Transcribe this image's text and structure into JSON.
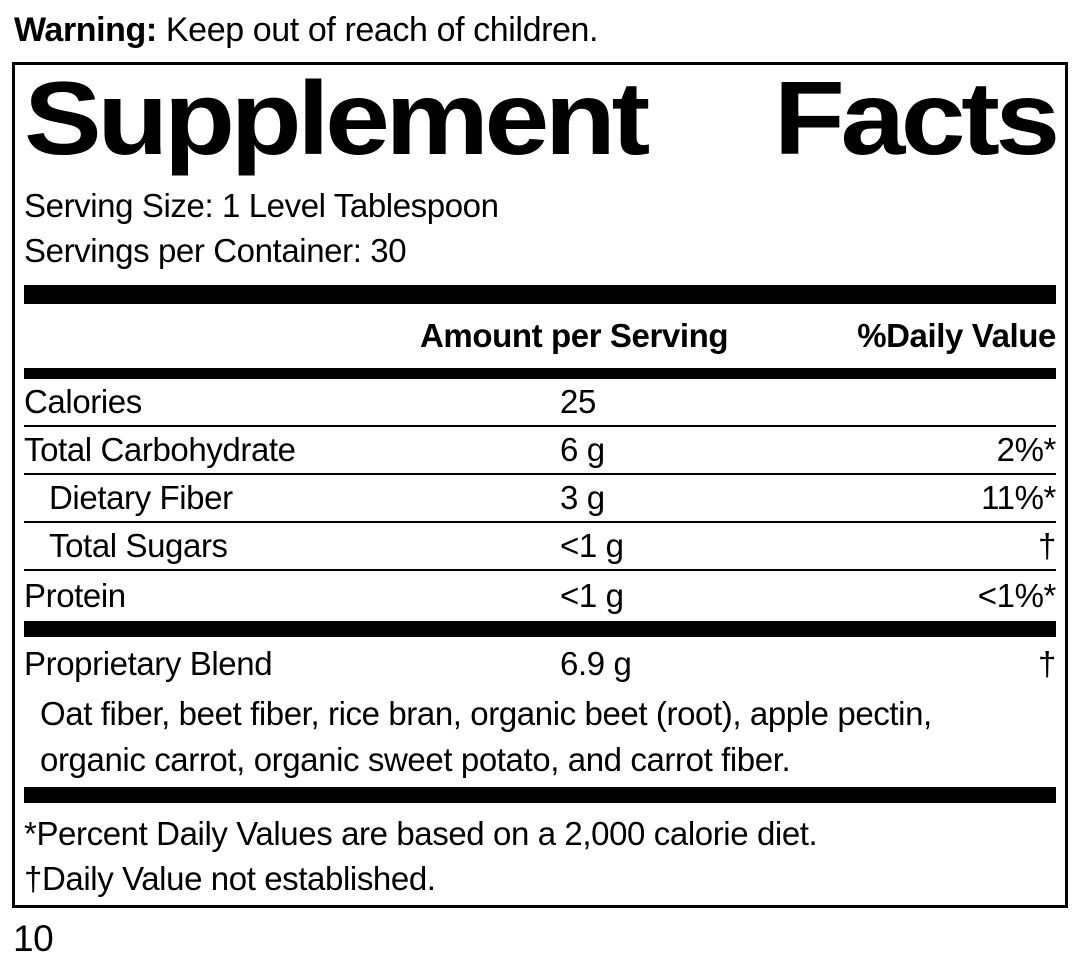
{
  "warning": {
    "label": "Warning:",
    "text": "Keep out of reach of children."
  },
  "panel": {
    "title_word1": "Supplement",
    "title_word2": "Facts",
    "serving_size": "Serving Size: 1 Level Tablespoon",
    "servings_per_container": "Servings per Container: 30",
    "header": {
      "amount": "Amount per Serving",
      "daily_value": "%Daily Value"
    },
    "rows": [
      {
        "name": "Calories",
        "amount": "25",
        "dv": "",
        "indent": false
      },
      {
        "name": "Total Carbohydrate",
        "amount": "6 g",
        "dv": "2%*",
        "indent": false
      },
      {
        "name": "Dietary Fiber",
        "amount": "3 g",
        "dv": "11%*",
        "indent": true
      },
      {
        "name": "Total Sugars",
        "amount": "<1 g",
        "dv": "†",
        "indent": true
      },
      {
        "name": "Protein",
        "amount": "<1 g",
        "dv": "<1%*",
        "indent": false
      }
    ],
    "blend": {
      "name": "Proprietary Blend",
      "amount": "6.9 g",
      "dv": "†",
      "ingredients": "Oat fiber, beet fiber, rice bran, organic beet (root), apple pectin, organic carrot, organic sweet potato, and carrot fiber."
    },
    "footnotes": [
      "*Percent Daily Values are based on a 2,000 calorie diet.",
      "†Daily Value not established."
    ]
  },
  "page_number": "10",
  "colors": {
    "ink": "#000000",
    "background": "#ffffff"
  }
}
